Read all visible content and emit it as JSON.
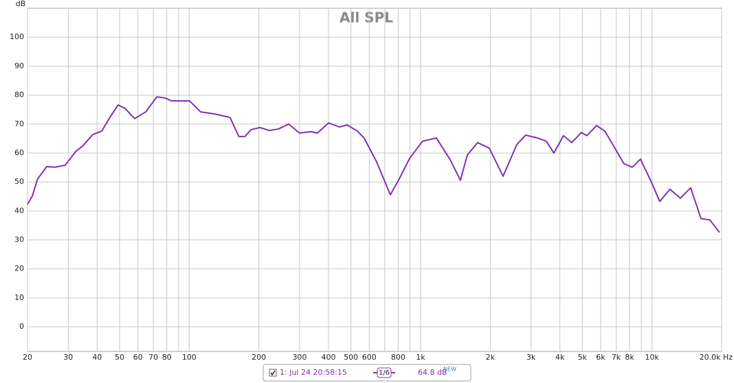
{
  "chart_data": {
    "type": "line",
    "title": "All SPL",
    "y_label": "dB",
    "x_scale": "log",
    "xlim": [
      20,
      20000
    ],
    "xticks": [
      20,
      30,
      40,
      50,
      60,
      70,
      80,
      100,
      200,
      300,
      400,
      500,
      600,
      800,
      {
        "value": 1000,
        "label": "1k"
      },
      {
        "value": 2000,
        "label": "2k"
      },
      {
        "value": 3000,
        "label": "3k"
      },
      {
        "value": 4000,
        "label": "4k"
      },
      {
        "value": 5000,
        "label": "5k"
      },
      {
        "value": 6000,
        "label": "6k"
      },
      {
        "value": 7000,
        "label": "7k"
      },
      {
        "value": 8000,
        "label": "8k"
      },
      {
        "value": 10000,
        "label": "10k"
      },
      {
        "value": 20000,
        "label": "20.0k Hz"
      }
    ],
    "xminor_ticks": [
      90,
      700,
      900,
      9000
    ],
    "ylim": [
      -8.5,
      110
    ],
    "yticks": [
      0,
      10,
      20,
      30,
      40,
      50,
      60,
      70,
      80,
      90,
      100
    ],
    "grid": true,
    "x": [
      20,
      21,
      22.1,
      24.2,
      26.3,
      29.1,
      32.3,
      34.6,
      38.3,
      41.9,
      45.4,
      49.3,
      52.8,
      58.1,
      64.9,
      72.4,
      78.5,
      84.1,
      91.3,
      100.4,
      112,
      128.6,
      150,
      164,
      174,
      185,
      202,
      222,
      243,
      269,
      300,
      335,
      358,
      400,
      446,
      481,
      533,
      570,
      645,
      740,
      803,
      897,
      1020,
      1170,
      1342,
      1486,
      1592,
      1764,
      1981,
      2272,
      2604,
      2846,
      3197,
      3495,
      3767,
      4146,
      4500,
      4952,
      5232,
      5758,
      6250,
      6833,
      7568,
      8220,
      8920,
      9950,
      10800,
      11960,
      13260,
      14700,
      16280,
      17790,
      19580
    ],
    "series": [
      {
        "name": "1: Jul 24 20:58:15",
        "color": "#8030b0",
        "values": [
          42.3,
          45.2,
          51,
          55.3,
          55.1,
          55.8,
          60.5,
          62.4,
          66.4,
          67.6,
          72.3,
          76.6,
          75.4,
          71.9,
          74.2,
          79.4,
          79,
          78,
          78,
          78,
          74.2,
          73.5,
          72.3,
          65.7,
          65.7,
          68.1,
          68.8,
          67.8,
          68.3,
          70,
          66.9,
          67.4,
          66.9,
          70.4,
          69,
          69.7,
          67.6,
          65.2,
          57,
          45.6,
          50.6,
          58.2,
          64.1,
          65.2,
          57.7,
          50.6,
          59.3,
          63.6,
          61.7,
          52,
          62.9,
          66.2,
          65.2,
          64.1,
          60,
          66,
          63.6,
          67.1,
          66,
          69.5,
          67.6,
          62.4,
          56.3,
          55.1,
          57.9,
          49.9,
          43.3,
          47.5,
          44.4,
          48,
          37.4,
          36.9,
          32.6
        ]
      }
    ],
    "legend": {
      "smoothing": "1/6",
      "level": "64.8 dB",
      "badge": "NEW"
    }
  }
}
